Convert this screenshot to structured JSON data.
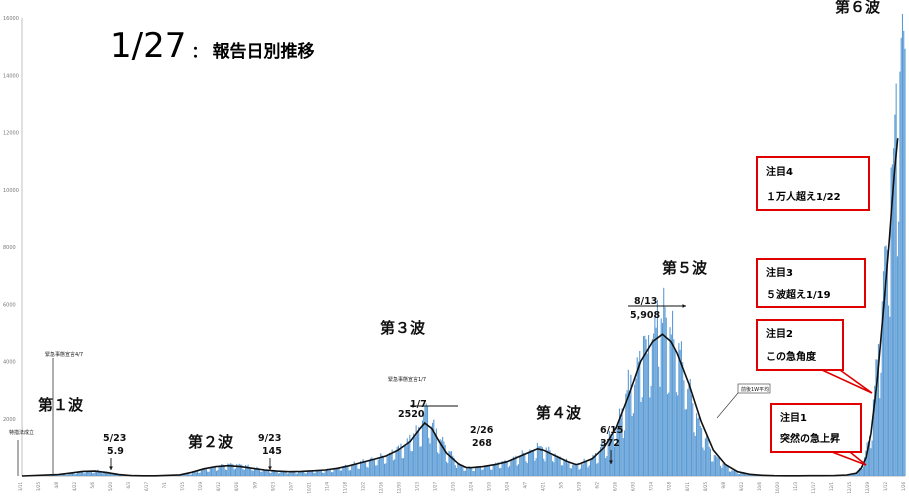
{
  "title": {
    "main": "1/27",
    "sub": "報告日別推移"
  },
  "chart_data": {
    "type": "bar",
    "ylim": [
      0,
      16000
    ],
    "yticks": [
      2000,
      4000,
      6000,
      8000,
      10000,
      12000,
      14000,
      16000
    ],
    "grid": false,
    "xlabels": [
      "3/11",
      "3/25",
      "4/8",
      "4/22",
      "5/6",
      "5/20",
      "6/3",
      "6/17",
      "7/1",
      "7/15",
      "7/29",
      "8/12",
      "8/26",
      "9/9",
      "9/23",
      "10/7",
      "10/21",
      "11/4",
      "11/18",
      "12/2",
      "12/16",
      "12/30",
      "1/13",
      "1/27",
      "2/10",
      "2/24",
      "3/10",
      "3/24",
      "4/7",
      "4/21",
      "5/5",
      "5/19",
      "6/2",
      "6/16",
      "6/30",
      "7/14",
      "7/28",
      "8/11",
      "8/25",
      "9/8",
      "9/22",
      "10/6",
      "10/20",
      "11/3",
      "11/17",
      "12/1",
      "12/15",
      "12/29",
      "1/12",
      "1/26"
    ],
    "daily_profile": [
      [
        0,
        0
      ],
      [
        3,
        20
      ],
      [
        4,
        80
      ],
      [
        5,
        150
      ],
      [
        6,
        190
      ],
      [
        7,
        140
      ],
      [
        8,
        60
      ],
      [
        9,
        20
      ],
      [
        10,
        6
      ],
      [
        11,
        6
      ],
      [
        13,
        30
      ],
      [
        14,
        100
      ],
      [
        15,
        230
      ],
      [
        16,
        330
      ],
      [
        17,
        400
      ],
      [
        18,
        380
      ],
      [
        19,
        300
      ],
      [
        20,
        220
      ],
      [
        21,
        160
      ],
      [
        22,
        145
      ],
      [
        23,
        150
      ],
      [
        24,
        180
      ],
      [
        25,
        200
      ],
      [
        26,
        260
      ],
      [
        27,
        360
      ],
      [
        28,
        480
      ],
      [
        29,
        580
      ],
      [
        30,
        720
      ],
      [
        31,
        950
      ],
      [
        32,
        1300
      ],
      [
        33,
        1900
      ],
      [
        33.3,
        2520
      ],
      [
        33.8,
        1900
      ],
      [
        34.3,
        1500
      ],
      [
        35,
        900
      ],
      [
        36,
        450
      ],
      [
        36.6,
        268
      ],
      [
        37,
        300
      ],
      [
        38,
        350
      ],
      [
        39,
        420
      ],
      [
        40,
        520
      ],
      [
        41,
        700
      ],
      [
        42,
        900
      ],
      [
        42.5,
        1100
      ],
      [
        43,
        1000
      ],
      [
        44,
        700
      ],
      [
        45,
        480
      ],
      [
        45.7,
        372
      ],
      [
        46,
        420
      ],
      [
        47,
        600
      ],
      [
        48,
        1100
      ],
      [
        49,
        1800
      ],
      [
        50,
        3000
      ],
      [
        51,
        4200
      ],
      [
        52,
        5000
      ],
      [
        52.6,
        5908
      ],
      [
        53,
        5300
      ],
      [
        54,
        4500
      ],
      [
        55,
        3200
      ],
      [
        56,
        1800
      ],
      [
        57,
        800
      ],
      [
        58,
        350
      ],
      [
        59,
        120
      ],
      [
        60,
        50
      ],
      [
        61,
        20
      ],
      [
        62,
        10
      ],
      [
        63,
        8
      ],
      [
        64,
        8
      ],
      [
        65,
        10
      ],
      [
        66,
        12
      ],
      [
        67,
        15
      ],
      [
        68,
        40
      ],
      [
        68.8,
        120
      ],
      [
        69.2,
        350
      ],
      [
        69.6,
        850
      ],
      [
        70,
        1800
      ],
      [
        70.5,
        3800
      ],
      [
        71,
        6500
      ],
      [
        71.5,
        9500
      ],
      [
        72,
        12000
      ],
      [
        72.4,
        14500
      ],
      [
        72.8,
        16200
      ]
    ],
    "series": [
      {
        "name": "前後1W平均",
        "type": "line",
        "points": [
          [
            0,
            0
          ],
          [
            3,
            50
          ],
          [
            4,
            100
          ],
          [
            5,
            160
          ],
          [
            6,
            170
          ],
          [
            7,
            120
          ],
          [
            8,
            50
          ],
          [
            9,
            15
          ],
          [
            10,
            8
          ],
          [
            11,
            6
          ],
          [
            13,
            40
          ],
          [
            14,
            130
          ],
          [
            15,
            250
          ],
          [
            16,
            330
          ],
          [
            17,
            360
          ],
          [
            18,
            330
          ],
          [
            19,
            270
          ],
          [
            20,
            210
          ],
          [
            21,
            170
          ],
          [
            22,
            150
          ],
          [
            23,
            160
          ],
          [
            24,
            180
          ],
          [
            25,
            210
          ],
          [
            26,
            270
          ],
          [
            27,
            360
          ],
          [
            28,
            470
          ],
          [
            29,
            580
          ],
          [
            30,
            700
          ],
          [
            31,
            900
          ],
          [
            32,
            1200
          ],
          [
            32.8,
            1650
          ],
          [
            33.2,
            1850
          ],
          [
            33.8,
            1650
          ],
          [
            34.4,
            1200
          ],
          [
            35,
            800
          ],
          [
            36,
            420
          ],
          [
            36.6,
            300
          ],
          [
            37,
            290
          ],
          [
            38,
            330
          ],
          [
            39,
            400
          ],
          [
            40,
            500
          ],
          [
            41,
            680
          ],
          [
            42,
            860
          ],
          [
            42.5,
            950
          ],
          [
            43,
            900
          ],
          [
            44,
            700
          ],
          [
            45,
            500
          ],
          [
            45.7,
            400
          ],
          [
            46,
            430
          ],
          [
            47,
            600
          ],
          [
            48,
            1000
          ],
          [
            49,
            1700
          ],
          [
            50,
            2800
          ],
          [
            51,
            4000
          ],
          [
            52,
            4700
          ],
          [
            52.8,
            4950
          ],
          [
            53.5,
            4700
          ],
          [
            54,
            4300
          ],
          [
            55,
            3200
          ],
          [
            56,
            1900
          ],
          [
            57,
            900
          ],
          [
            58,
            400
          ],
          [
            59,
            150
          ],
          [
            60,
            60
          ],
          [
            61,
            25
          ],
          [
            62,
            12
          ],
          [
            63,
            8
          ],
          [
            64,
            8
          ],
          [
            65,
            10
          ],
          [
            66,
            12
          ],
          [
            67,
            15
          ],
          [
            68,
            35
          ],
          [
            68.8,
            100
          ],
          [
            69.2,
            280
          ],
          [
            69.6,
            650
          ],
          [
            70,
            1500
          ],
          [
            70.5,
            3300
          ],
          [
            71,
            5700
          ],
          [
            71.5,
            8200
          ],
          [
            71.9,
            10500
          ],
          [
            72.2,
            11800
          ]
        ]
      }
    ],
    "waves": [
      {
        "label": "第１波",
        "x": 14,
        "y": 2250
      },
      {
        "label": "第２波",
        "x": 15.8,
        "y": 1000
      },
      {
        "label": "第３波",
        "x": 31.5,
        "y": 4600
      },
      {
        "label": "第４波",
        "x": 43.3,
        "y": 2000
      },
      {
        "label": "第５波",
        "x": 53.1,
        "y": 7050
      },
      {
        "label": "第６波",
        "x": 71.6,
        "y": 16200
      }
    ],
    "annotations": [
      {
        "date": "5/23",
        "value": "5.9"
      },
      {
        "date": "9/23",
        "value": "145"
      },
      {
        "date": "1/7",
        "value": "2520"
      },
      {
        "date": "2/26",
        "value": "268"
      },
      {
        "date": "6/15",
        "value": "372"
      },
      {
        "date": "8/13",
        "value": "5,908"
      }
    ],
    "notes": {
      "tokusoho": "特措法成立",
      "emergency1": "緊急事態宣言4/7",
      "emergency2": "緊急事態宣言1/7",
      "legend_label": "前後1W平均"
    },
    "callouts": [
      {
        "line1": "注目4",
        "line2": "１万人超え1/22"
      },
      {
        "line1": "注目3",
        "line2": "５波超え1/19"
      },
      {
        "line1": "注目2",
        "line2": "この急角度"
      },
      {
        "line1": "注目1",
        "line2": "突然の急上昇"
      }
    ],
    "colors": {
      "bar": "#5b9bd5",
      "line": "#111111",
      "callout": "#e00000"
    }
  }
}
